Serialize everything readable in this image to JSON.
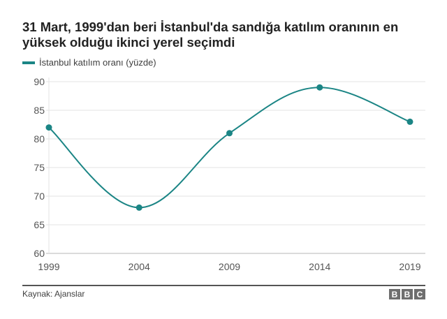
{
  "header": {
    "title": "31 Mart, 1999'dan beri İstanbul'da sandığa katılım oranının en yüksek olduğu ikinci yerel seçimdi"
  },
  "legend": {
    "label": "İstanbul katılım oranı (yüzde)",
    "color": "#1b8585"
  },
  "footer": {
    "source": "Kaynak: Ajanslar",
    "logo_letters": [
      "B",
      "B",
      "C"
    ]
  },
  "chart_data": {
    "type": "line",
    "title": "31 Mart, 1999'dan beri İstanbul'da sandığa katılım oranının en yüksek olduğu ikinci yerel seçimdi",
    "xlabel": "",
    "ylabel": "",
    "categories": [
      "1999",
      "2004",
      "2009",
      "2014",
      "2019"
    ],
    "series": [
      {
        "name": "İstanbul katılım oranı (yüzde)",
        "values": [
          82,
          68,
          81,
          89,
          83
        ],
        "color": "#1b8585"
      }
    ],
    "ylim": [
      60,
      90
    ],
    "yticks": [
      60,
      65,
      70,
      75,
      80,
      85,
      90
    ],
    "grid": true,
    "legend_position": "top-left",
    "smooth": true
  }
}
